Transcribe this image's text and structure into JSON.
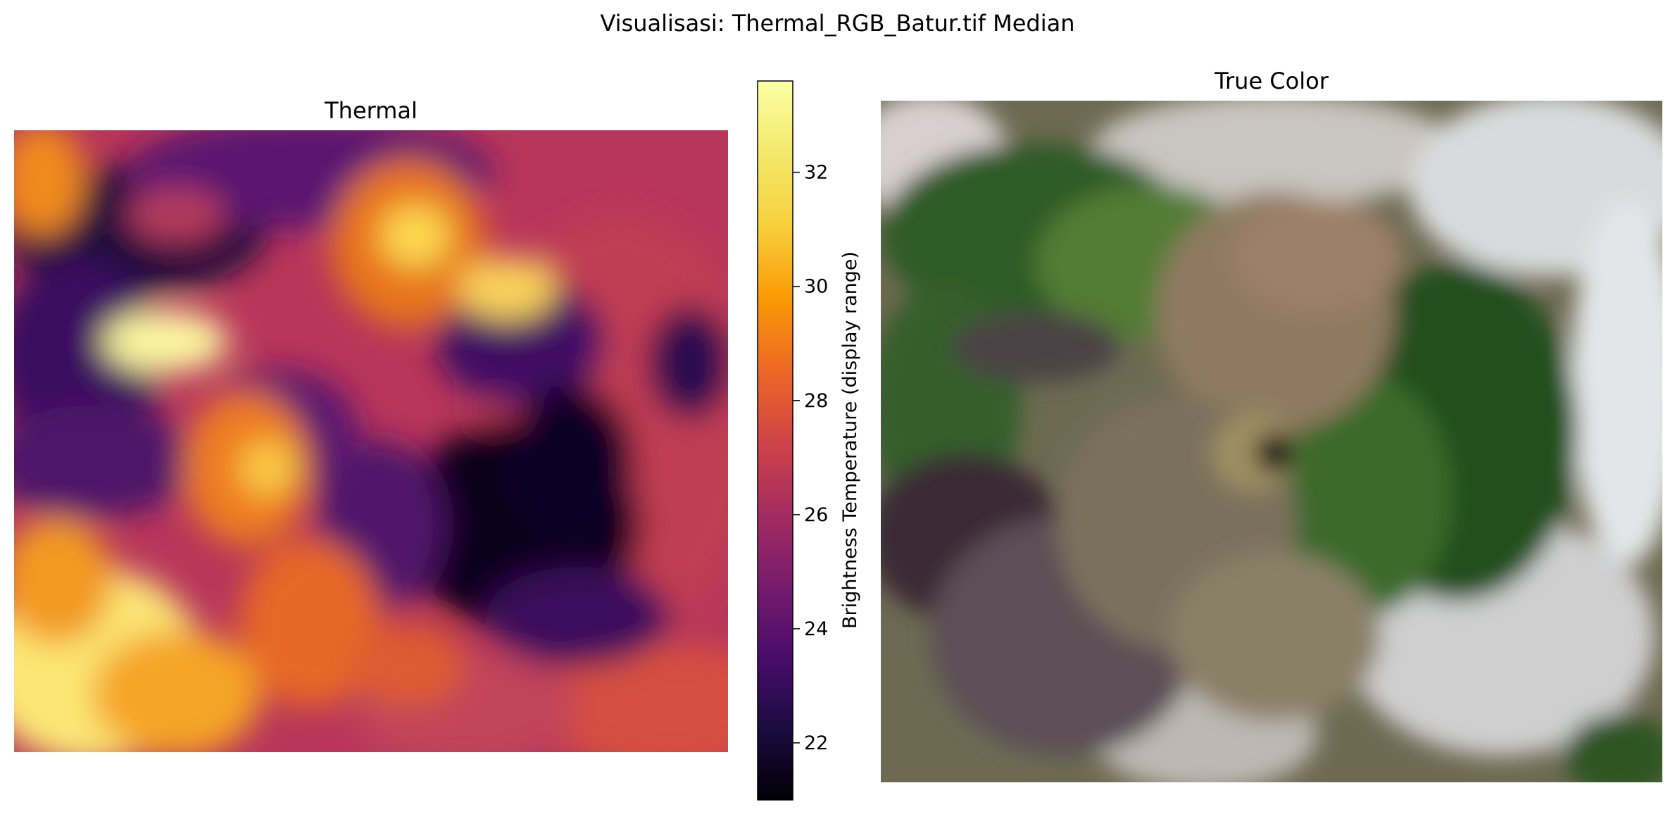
{
  "figure": {
    "suptitle": "Visualisasi: Thermal_RGB_Batur.tif Median"
  },
  "chart_data": [
    {
      "type": "heatmap",
      "title": "Thermal",
      "colormap": "inferno",
      "axes": "off",
      "colorbar": {
        "label": "Brightness Temperature (display range)",
        "vmin": 21.0,
        "vmax": 33.6,
        "ticks": [
          22,
          24,
          26,
          28,
          30,
          32
        ],
        "tick_labels": [
          "22",
          "24",
          "26",
          "28",
          "30",
          "32"
        ]
      },
      "hot_spots_approx_values": {
        "upper_left_patch": 33.5,
        "lower_left_region": 33.0,
        "central_dark_region": 21.0,
        "background_typical": 27.5
      }
    },
    {
      "type": "image",
      "title": "True Color",
      "axes": "off",
      "description_colors": {
        "vegetation": "#2f5a2a",
        "lava_dark": "#3a2b33",
        "bare_slope": "#8a7a5e",
        "cloud": "#e6e6ea"
      }
    }
  ]
}
